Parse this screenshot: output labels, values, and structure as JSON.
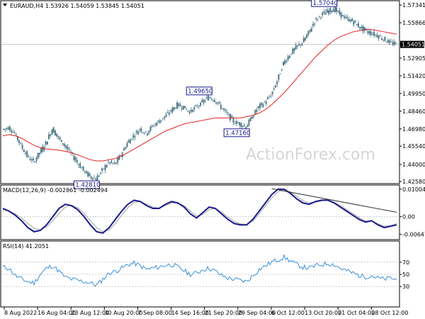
{
  "header": {
    "price": "EURAUD,H4  1.53926 1.54059 1.53845 1.54051",
    "macd": "MACD(12,26,9) -0.002861 -0.002494",
    "rsi": "RSI(14) 41.2051"
  },
  "watermark": "ActionForex.com",
  "colors": {
    "candle": "#4f7a8a",
    "ma": "#e02020",
    "macd": "#1a1a8c",
    "signal": "#b0b0b0",
    "rsi": "#3a8fd8",
    "trend": "#333333",
    "annotation_border": "#1a1a8c",
    "grid": "#c8c8c8"
  },
  "chart_data": [
    {
      "type": "candlestick",
      "name": "EURAUD H4 price",
      "ylim": [
        1.4258,
        1.5741
      ],
      "y_ticks": [
        "1.57341",
        "1.55866",
        "1.54051",
        "1.52905",
        "1.51420",
        "1.49950",
        "1.48460",
        "1.46980",
        "1.45540",
        "1.44000",
        "1.42580"
      ],
      "current_price": "1.54051",
      "closes": [
        1.469,
        1.471,
        1.466,
        1.456,
        1.447,
        1.442,
        1.45,
        1.458,
        1.47,
        1.462,
        1.456,
        1.449,
        1.442,
        1.435,
        1.43,
        1.4281,
        1.435,
        1.442,
        1.44,
        1.448,
        1.458,
        1.464,
        1.47,
        1.466,
        1.472,
        1.476,
        1.48,
        1.485,
        1.49,
        1.488,
        1.484,
        1.488,
        1.492,
        1.4965,
        1.494,
        1.488,
        1.482,
        1.476,
        1.474,
        1.4716,
        1.48,
        1.488,
        1.492,
        1.498,
        1.51,
        1.525,
        1.532,
        1.538,
        1.542,
        1.55,
        1.56,
        1.565,
        1.568,
        1.5704,
        1.566,
        1.562,
        1.56,
        1.556,
        1.552,
        1.55,
        1.548,
        1.545,
        1.542,
        1.5405
      ],
      "ma_values": [
        1.464,
        1.465,
        1.464,
        1.462,
        1.459,
        1.456,
        1.454,
        1.453,
        1.4525,
        1.452,
        1.451,
        1.45,
        1.448,
        1.446,
        1.444,
        1.443,
        1.443,
        1.444,
        1.445,
        1.447,
        1.45,
        1.453,
        1.456,
        1.459,
        1.462,
        1.465,
        1.468,
        1.47,
        1.472,
        1.474,
        1.475,
        1.476,
        1.477,
        1.478,
        1.479,
        1.479,
        1.479,
        1.479,
        1.479,
        1.48,
        1.481,
        1.483,
        1.486,
        1.49,
        1.495,
        1.5,
        1.506,
        1.512,
        1.518,
        1.524,
        1.53,
        1.535,
        1.54,
        1.544,
        1.547,
        1.549,
        1.551,
        1.552,
        1.553,
        1.553,
        1.552,
        1.551,
        1.55,
        1.549
      ],
      "annotations": [
        {
          "label": "1.57040",
          "index": 53,
          "value": 1.5704,
          "side": "above"
        },
        {
          "label": "1.49650",
          "index": 33,
          "value": 1.4965,
          "side": "above"
        },
        {
          "label": "1.47160",
          "index": 39,
          "value": 1.4716,
          "side": "below"
        },
        {
          "label": "1.42810",
          "index": 15,
          "value": 1.4281,
          "side": "below"
        }
      ]
    },
    {
      "type": "line",
      "name": "MACD(12,26,9)",
      "ylim": [
        -0.0076,
        0.0105
      ],
      "y_ticks": [
        "0.010047",
        "0.00",
        "-0.006476"
      ],
      "macd": [
        0.003,
        0.002,
        0.0005,
        -0.0015,
        -0.004,
        -0.0055,
        -0.005,
        -0.003,
        0.0,
        0.003,
        0.0045,
        0.004,
        0.0025,
        0.0,
        -0.003,
        -0.0055,
        -0.006,
        -0.004,
        -0.001,
        0.002,
        0.0045,
        0.006,
        0.0055,
        0.004,
        0.003,
        0.003,
        0.0045,
        0.0055,
        0.005,
        0.0035,
        0.001,
        -0.0005,
        0.0015,
        0.0035,
        0.003,
        0.001,
        -0.001,
        -0.0025,
        -0.003,
        -0.003,
        -0.001,
        0.002,
        0.005,
        0.008,
        0.01,
        0.01,
        0.0085,
        0.0065,
        0.005,
        0.0045,
        0.0055,
        0.006,
        0.006,
        0.005,
        0.0035,
        0.002,
        0.0005,
        -0.001,
        -0.002,
        -0.0015,
        -0.003,
        -0.004,
        -0.0035,
        -0.003
      ],
      "signal": [
        0.0025,
        0.002,
        0.001,
        -0.0005,
        -0.0025,
        -0.0042,
        -0.0048,
        -0.0038,
        -0.0015,
        0.0012,
        0.0035,
        0.0042,
        0.0032,
        0.0012,
        -0.0015,
        -0.004,
        -0.0055,
        -0.0048,
        -0.0025,
        0.0005,
        0.0032,
        0.0052,
        0.0055,
        0.0046,
        0.0035,
        0.0031,
        0.004,
        0.005,
        0.005,
        0.004,
        0.002,
        0.0002,
        0.0008,
        0.0026,
        0.003,
        0.0016,
        -0.0002,
        -0.0018,
        -0.0026,
        -0.0028,
        -0.0016,
        0.001,
        0.004,
        0.0068,
        0.009,
        0.0098,
        0.009,
        0.0074,
        0.0058,
        0.005,
        0.0053,
        0.0058,
        0.0059,
        0.0053,
        0.004,
        0.0026,
        0.0011,
        -0.0004,
        -0.0015,
        -0.0016,
        -0.0026,
        -0.0035,
        -0.0034,
        -0.0025
      ],
      "trendline": {
        "from_index": 43,
        "from_value": 0.0102,
        "to_index": 63,
        "to_value": 0.0016
      }
    },
    {
      "type": "line",
      "name": "RSI(14)",
      "ylim": [
        0,
        100
      ],
      "y_ticks": [
        "70",
        "50",
        "30"
      ],
      "values": [
        62,
        60,
        48,
        42,
        38,
        36,
        50,
        60,
        64,
        55,
        45,
        42,
        40,
        38,
        36,
        32,
        42,
        52,
        55,
        60,
        66,
        68,
        64,
        58,
        60,
        62,
        65,
        66,
        62,
        56,
        50,
        52,
        58,
        60,
        55,
        48,
        44,
        42,
        40,
        38,
        48,
        58,
        64,
        70,
        74,
        78,
        72,
        66,
        62,
        60,
        64,
        66,
        68,
        66,
        60,
        56,
        52,
        48,
        46,
        48,
        44,
        42,
        44,
        41.2
      ]
    }
  ],
  "x_axis": {
    "labels": [
      "8 Aug 2022",
      "16 Aug 04:00",
      "23 Aug 12:00",
      "30 Aug 20:00",
      "7 Sep 08:00",
      "14 Sep 16:00",
      "21 Sep 20:00",
      "29 Sep 04:00",
      "6 Oct 12:00",
      "13 Oct 20:00",
      "21 Oct 04:00",
      "28 Oct 12:00"
    ]
  }
}
